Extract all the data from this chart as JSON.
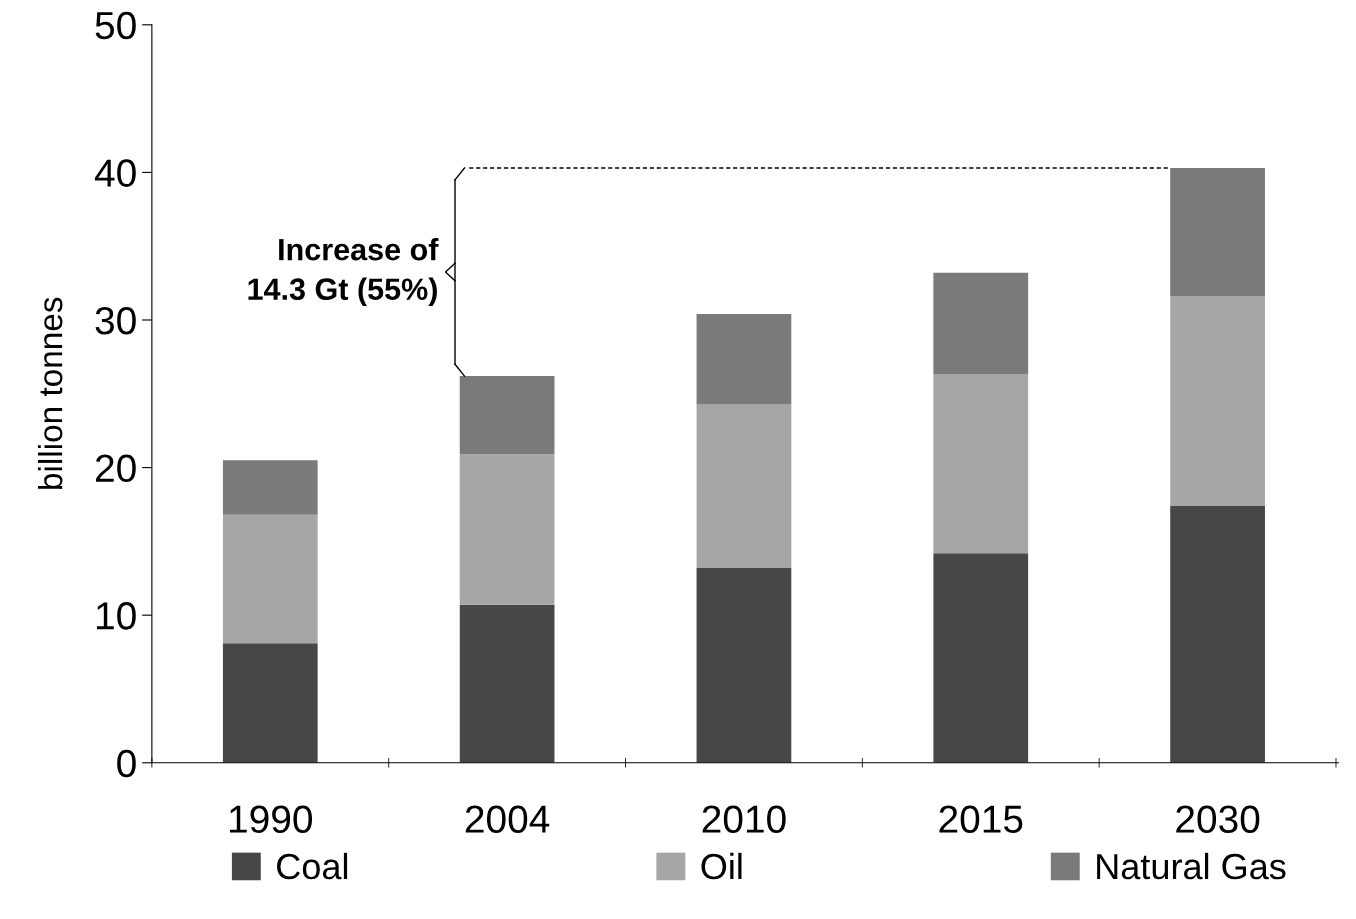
{
  "chart_data": {
    "type": "bar",
    "stacked": true,
    "ylabel": "billion tonnes",
    "categories": [
      "1990",
      "2004",
      "2010",
      "2015",
      "2030"
    ],
    "series": [
      {
        "name": "Coal",
        "color": "#474747",
        "values": [
          8.1,
          10.7,
          13.2,
          14.2,
          17.4
        ]
      },
      {
        "name": "Oil",
        "color": "#a6a6a6",
        "values": [
          8.7,
          10.2,
          11.1,
          12.1,
          14.2
        ]
      },
      {
        "name": "Natural Gas",
        "color": "#7a7a7a",
        "values": [
          3.7,
          5.3,
          6.1,
          6.9,
          8.7
        ]
      }
    ],
    "ref_lines": [
      {
        "axis": "y",
        "value": 40.3,
        "line_style": "dashed",
        "color": "#000000"
      }
    ],
    "ylim": [
      0,
      50
    ],
    "yticks": [
      0,
      10,
      20,
      30,
      40,
      50
    ],
    "grid": false,
    "legend": "bottom",
    "annotations": [
      "Increase of\n14.3 Gt (55%)"
    ]
  }
}
